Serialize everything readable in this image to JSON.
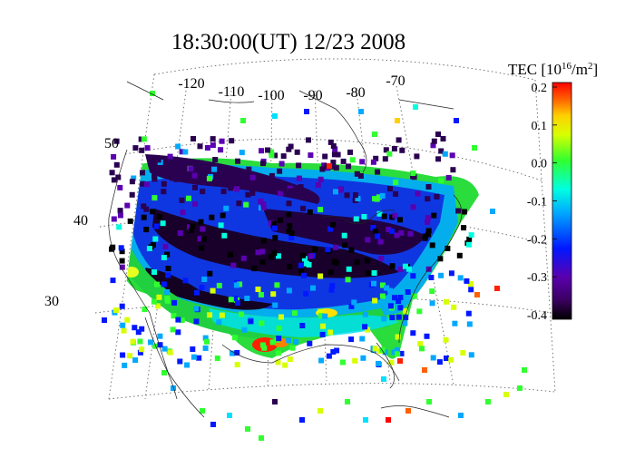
{
  "title": "18:30:00(UT)  12/23 2008",
  "colorbar": {
    "title_main": "TEC [10",
    "title_sup1": "16",
    "title_mid": "/m",
    "title_sup2": "2",
    "title_end": "]",
    "ticks": [
      "0.2",
      "0.1",
      "0.0",
      "-0.1",
      "-0.2",
      "-0.3",
      "-0.4"
    ],
    "range": [
      -0.4,
      0.2
    ]
  },
  "longitude_labels": [
    "-120",
    "-110",
    "-100",
    "-90",
    "-80",
    "-70"
  ],
  "latitude_labels": [
    "50",
    "40",
    "30"
  ],
  "colors": {
    "min": "#000000",
    "low": "#5a0090",
    "mid_low": "#0020ff",
    "mid": "#00e0ff",
    "mid_high": "#30ff30",
    "high": "#ffff00",
    "max": "#ff0000"
  }
}
